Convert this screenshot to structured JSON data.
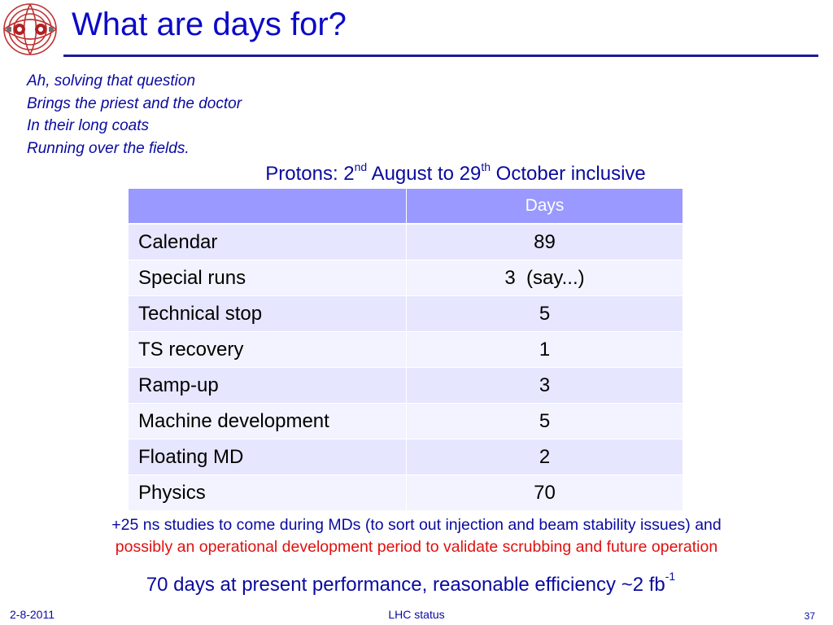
{
  "slide": {
    "title": "What are days for?",
    "poem": [
      "Ah, solving that question",
      "Brings the priest and the doctor",
      "In their long coats",
      "Running over the fields."
    ],
    "subheading": {
      "prefix": "Protons: 2",
      "sup1": "nd",
      "middle": " August to 29",
      "sup2": "th",
      "suffix": " October inclusive"
    },
    "table": {
      "headers": [
        "",
        "Days"
      ],
      "rows": [
        [
          "Calendar",
          "89"
        ],
        [
          "Special runs",
          "3  (say...)"
        ],
        [
          "Technical stop",
          "5"
        ],
        [
          "TS recovery",
          "1"
        ],
        [
          "Ramp-up",
          "3"
        ],
        [
          "Machine development",
          "5"
        ],
        [
          "Floating MD",
          "2"
        ],
        [
          "Physics",
          "70"
        ]
      ]
    },
    "note": {
      "line1": "+25 ns studies to come during MDs (to sort out injection and beam stability issues) and",
      "line2": "possibly an operational development period to validate scrubbing and future operation"
    },
    "conclusion": {
      "text": "70 days at present performance, reasonable efficiency ~2 fb",
      "sup": "-1"
    },
    "footer": {
      "date": "2-8-2011",
      "center": "LHC status",
      "page": "37"
    }
  },
  "colors": {
    "title": "#0a0ac8",
    "text_blue": "#0a0aa0",
    "note_red": "#e01010",
    "table_header": "#9999ff",
    "table_row_odd": "#e6e6ff",
    "table_row_even": "#f3f3ff"
  },
  "icons": [
    "lhc-logo-icon"
  ]
}
